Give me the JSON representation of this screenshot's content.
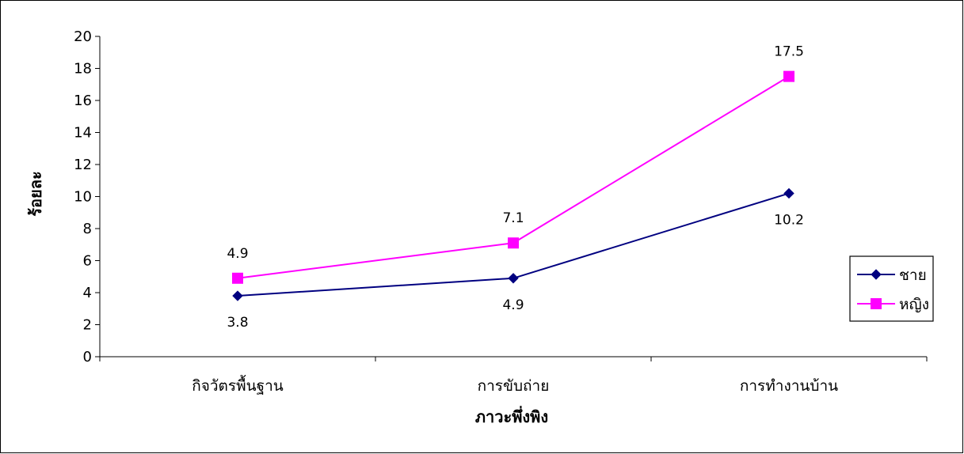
{
  "chart_data": {
    "type": "line",
    "title": "",
    "xlabel": "ภาวะพึ่งพิง",
    "ylabel": "ร้อยละ",
    "categories": [
      "กิจวัตรพื้นฐาน",
      "การขับถ่าย",
      "การทำงานบ้าน"
    ],
    "ylim": [
      0,
      20
    ],
    "yticks": [
      "0",
      "2",
      "4",
      "6",
      "8",
      "10",
      "12",
      "14",
      "16",
      "18",
      "20"
    ],
    "grid": false,
    "legend_position": "right",
    "series": [
      {
        "name": "ชาย",
        "values": [
          3.8,
          4.9,
          10.2
        ],
        "labels": [
          "3.8",
          "4.9",
          "10.2"
        ],
        "color": "#000080",
        "marker": "diamond",
        "label_position": "below"
      },
      {
        "name": "หญิง",
        "values": [
          4.9,
          7.1,
          17.5
        ],
        "labels": [
          "4.9",
          "7.1",
          "17.5"
        ],
        "color": "#FF00FF",
        "marker": "square",
        "label_position": "above"
      }
    ]
  }
}
